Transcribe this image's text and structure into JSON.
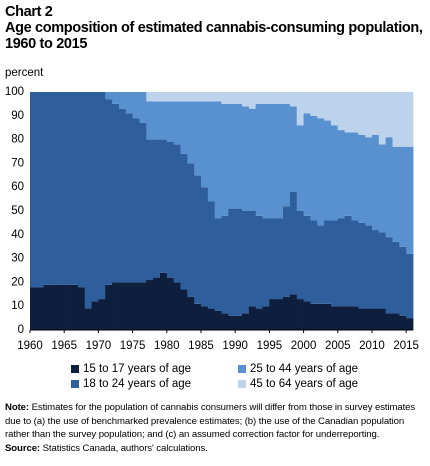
{
  "chart_data": {
    "type": "stacked_area",
    "label": "Chart 2",
    "title": "Age composition of estimated cannabis-consuming population, 1960 to 2015",
    "y_label": "percent",
    "x": [
      1960,
      1961,
      1962,
      1963,
      1964,
      1965,
      1966,
      1967,
      1968,
      1969,
      1970,
      1971,
      1972,
      1973,
      1974,
      1975,
      1976,
      1977,
      1978,
      1979,
      1980,
      1981,
      1982,
      1983,
      1984,
      1985,
      1986,
      1987,
      1988,
      1989,
      1990,
      1991,
      1992,
      1993,
      1994,
      1995,
      1996,
      1997,
      1998,
      1999,
      2000,
      2001,
      2002,
      2003,
      2004,
      2005,
      2006,
      2007,
      2008,
      2009,
      2010,
      2011,
      2012,
      2013,
      2014,
      2015
    ],
    "series": [
      {
        "name": "15 to 17 years of age",
        "color": "#0e1f3d",
        "values": [
          18,
          18,
          19,
          19,
          19,
          19,
          19,
          18,
          9,
          12,
          13,
          19,
          20,
          20,
          20,
          20,
          20,
          21,
          22,
          24,
          22,
          20,
          17,
          14,
          11,
          10,
          9,
          8,
          7,
          6,
          6,
          7,
          10,
          9,
          10,
          13,
          13,
          14,
          15,
          13,
          12,
          11,
          11,
          11,
          10,
          10,
          10,
          10,
          9,
          9,
          9,
          9,
          7,
          7,
          6,
          5
        ]
      },
      {
        "name": "18 to 24 years of age",
        "color": "#2f5e9c",
        "values": [
          82,
          82,
          81,
          81,
          81,
          81,
          81,
          82,
          91,
          88,
          87,
          78,
          75,
          73,
          71,
          69,
          67,
          59,
          58,
          56,
          57,
          58,
          57,
          56,
          54,
          50,
          45,
          39,
          41,
          45,
          45,
          43,
          40,
          39,
          37,
          34,
          34,
          38,
          43,
          37,
          36,
          35,
          33,
          35,
          36,
          37,
          38,
          36,
          36,
          35,
          33,
          32,
          32,
          30,
          29,
          27
        ]
      },
      {
        "name": "25 to 44 years of age",
        "color": "#5890d0",
        "values": [
          0,
          0,
          0,
          0,
          0,
          0,
          0,
          0,
          0,
          0,
          0,
          3,
          5,
          7,
          9,
          11,
          13,
          16,
          16,
          16,
          17,
          18,
          22,
          26,
          31,
          36,
          42,
          49,
          47,
          44,
          44,
          44,
          43,
          47,
          48,
          48,
          48,
          43,
          36,
          36,
          43,
          44,
          45,
          42,
          40,
          37,
          35,
          37,
          37,
          37,
          40,
          37,
          42,
          40,
          42,
          45
        ]
      },
      {
        "name": "45 to 64 years of age",
        "color": "#bdd3ec",
        "values": [
          0,
          0,
          0,
          0,
          0,
          0,
          0,
          0,
          0,
          0,
          0,
          0,
          0,
          0,
          0,
          0,
          0,
          4,
          4,
          4,
          4,
          4,
          4,
          4,
          4,
          4,
          4,
          4,
          5,
          5,
          5,
          6,
          7,
          5,
          5,
          5,
          5,
          5,
          6,
          14,
          9,
          10,
          11,
          12,
          14,
          16,
          17,
          17,
          18,
          19,
          18,
          22,
          19,
          23,
          23,
          23
        ]
      }
    ],
    "xlim": [
      1960,
      2016
    ],
    "xticks": [
      1960,
      1965,
      1970,
      1975,
      1980,
      1985,
      1990,
      1995,
      2000,
      2005,
      2010,
      2015
    ],
    "ylim": [
      0,
      100
    ],
    "yticks": [
      0,
      10,
      20,
      30,
      40,
      50,
      60,
      70,
      80,
      90,
      100
    ],
    "grid": false,
    "legend": "bottom",
    "note_label": "Note:",
    "note": "Estimates for the population of cannabis consumers will differ from those in survey estimates due to (a) the use of benchmarked prevalence estimates; (b) the use of the Canadian population rather than the survey population; and (c) an assumed correction factor for underreporting.",
    "source_label": "Source:",
    "source": "Statistics Canada, authors' calculations."
  }
}
